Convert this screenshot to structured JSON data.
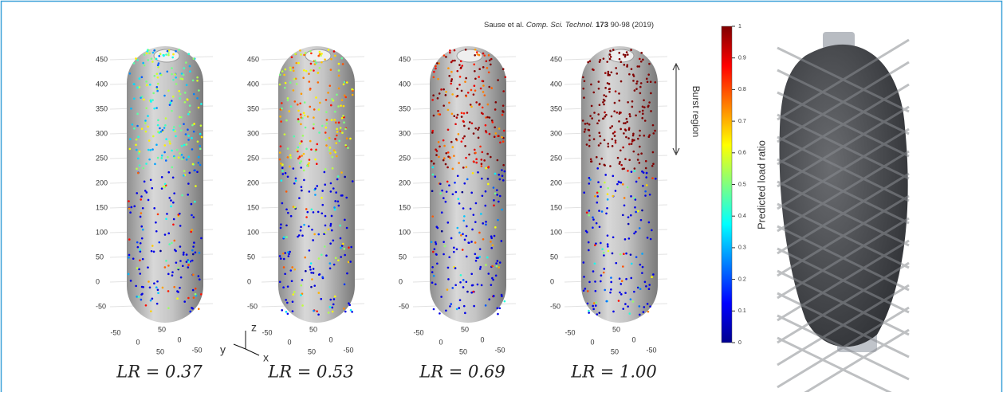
{
  "citation": {
    "authors": "Sause et al.",
    "journal": "Comp. Sci. Technol.",
    "volume": "173",
    "pages": "90-98",
    "year": "(2019)"
  },
  "panels": [
    {
      "label": "LR = 0.37"
    },
    {
      "label": "LR = 0.53"
    },
    {
      "label": "LR = 0.69"
    },
    {
      "label": "LR = 1.00"
    }
  ],
  "z_ticks": [
    450,
    400,
    350,
    300,
    250,
    200,
    150,
    100,
    50,
    0,
    -50
  ],
  "x_ticks": [
    -50,
    0,
    50
  ],
  "y_ticks": [
    -50,
    0,
    50
  ],
  "axis_labels": {
    "x": "x",
    "y": "y",
    "z": "z"
  },
  "annotation": "Burst region",
  "colorbar": {
    "label": "Predicted load ratio",
    "ticks": [
      0,
      0.1,
      0.2,
      0.3,
      0.4,
      0.5,
      0.6,
      0.7,
      0.8,
      0.9,
      1
    ]
  }
}
